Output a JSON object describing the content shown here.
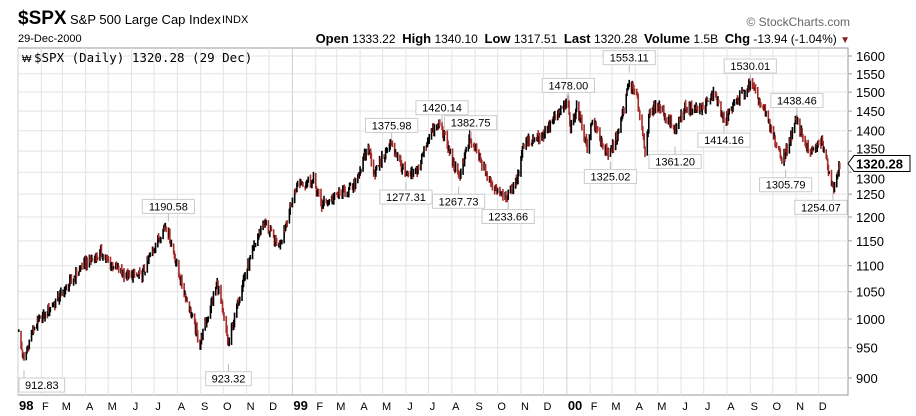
{
  "header": {
    "symbol": "$SPX",
    "name": "S&P 500 Large Cap Index",
    "exchange": "INDX",
    "date": "29-Dec-2000",
    "open_label": "Open",
    "open": "1333.22",
    "high_label": "High",
    "high": "1340.10",
    "low_label": "Low",
    "low": "1317.51",
    "last_label": "Last",
    "last": "1320.28",
    "volume_label": "Volume",
    "volume": "1.5B",
    "chg_label": "Chg",
    "chg": "-13.94 (-1.04%)",
    "chg_direction_icon": "triangle-down-icon",
    "copyright": "© StockCharts.com"
  },
  "chart_data": {
    "type": "line",
    "style": "ohlc-bars",
    "legend": "$SPX (Daily) 1320.28 (29 Dec)",
    "legend_placement": "top-left",
    "y_scale": "log",
    "ylim": [
      880,
      1620
    ],
    "y_ticks": [
      "1600",
      "1550",
      "1500",
      "1450",
      "1400",
      "1350",
      "1300",
      "1250",
      "1200",
      "1150",
      "1100",
      "1050",
      "1000",
      "950",
      "900"
    ],
    "x_range": [
      "1998-01-01",
      "2000-12-31"
    ],
    "x_ticks": [
      {
        "label": "98",
        "date": "1998-01-01",
        "bold": true
      },
      {
        "label": "F",
        "date": "1998-02-01"
      },
      {
        "label": "M",
        "date": "1998-03-01"
      },
      {
        "label": "A",
        "date": "1998-04-01"
      },
      {
        "label": "M",
        "date": "1998-05-01"
      },
      {
        "label": "J",
        "date": "1998-06-01"
      },
      {
        "label": "J",
        "date": "1998-07-01"
      },
      {
        "label": "A",
        "date": "1998-08-01"
      },
      {
        "label": "S",
        "date": "1998-09-01"
      },
      {
        "label": "O",
        "date": "1998-10-01"
      },
      {
        "label": "N",
        "date": "1998-11-01"
      },
      {
        "label": "D",
        "date": "1998-12-01"
      },
      {
        "label": "99",
        "date": "1999-01-01",
        "bold": true
      },
      {
        "label": "F",
        "date": "1999-02-01"
      },
      {
        "label": "M",
        "date": "1999-03-01"
      },
      {
        "label": "A",
        "date": "1999-04-01"
      },
      {
        "label": "M",
        "date": "1999-05-01"
      },
      {
        "label": "J",
        "date": "1999-06-01"
      },
      {
        "label": "J",
        "date": "1999-07-01"
      },
      {
        "label": "A",
        "date": "1999-08-01"
      },
      {
        "label": "S",
        "date": "1999-09-01"
      },
      {
        "label": "O",
        "date": "1999-10-01"
      },
      {
        "label": "N",
        "date": "1999-11-01"
      },
      {
        "label": "D",
        "date": "1999-12-01"
      },
      {
        "label": "00",
        "date": "2000-01-01",
        "bold": true
      },
      {
        "label": "F",
        "date": "2000-02-01"
      },
      {
        "label": "M",
        "date": "2000-03-01"
      },
      {
        "label": "A",
        "date": "2000-04-01"
      },
      {
        "label": "M",
        "date": "2000-05-01"
      },
      {
        "label": "J",
        "date": "2000-06-01"
      },
      {
        "label": "J",
        "date": "2000-07-01"
      },
      {
        "label": "A",
        "date": "2000-08-01"
      },
      {
        "label": "S",
        "date": "2000-09-01"
      },
      {
        "label": "O",
        "date": "2000-10-01"
      },
      {
        "label": "N",
        "date": "2000-11-01"
      },
      {
        "label": "D",
        "date": "2000-12-01"
      }
    ],
    "last_value_tag": "1320.28",
    "up_color": "#000000",
    "down_color": "#a52a2a",
    "grid": true,
    "approx_closes": [
      [
        "1998-01-02",
        975
      ],
      [
        "1998-01-09",
        927
      ],
      [
        "1998-01-20",
        980
      ],
      [
        "1998-02-13",
        1020
      ],
      [
        "1998-03-06",
        1055
      ],
      [
        "1998-03-27",
        1100
      ],
      [
        "1998-04-21",
        1125
      ],
      [
        "1998-05-06",
        1100
      ],
      [
        "1998-05-27",
        1080
      ],
      [
        "1998-06-15",
        1080
      ],
      [
        "1998-06-30",
        1135
      ],
      [
        "1998-07-17",
        1186
      ],
      [
        "1998-08-04",
        1080
      ],
      [
        "1998-08-31",
        957
      ],
      [
        "1998-09-23",
        1066
      ],
      [
        "1998-10-08",
        955
      ],
      [
        "1998-10-27",
        1070
      ],
      [
        "1998-11-23",
        1190
      ],
      [
        "1998-12-14",
        1140
      ],
      [
        "1998-12-31",
        1229
      ],
      [
        "1999-01-08",
        1275
      ],
      [
        "1999-01-29",
        1280
      ],
      [
        "1999-02-09",
        1225
      ],
      [
        "1999-03-04",
        1250
      ],
      [
        "1999-03-23",
        1265
      ],
      [
        "1999-04-12",
        1360
      ],
      [
        "1999-04-20",
        1300
      ],
      [
        "1999-05-13",
        1370
      ],
      [
        "1999-06-01",
        1290
      ],
      [
        "1999-06-14",
        1295
      ],
      [
        "1999-07-02",
        1390
      ],
      [
        "1999-07-16",
        1418
      ],
      [
        "1999-08-10",
        1285
      ],
      [
        "1999-08-25",
        1380
      ],
      [
        "1999-09-23",
        1270
      ],
      [
        "1999-10-15",
        1247
      ],
      [
        "1999-10-26",
        1280
      ],
      [
        "1999-11-05",
        1370
      ],
      [
        "1999-11-30",
        1390
      ],
      [
        "1999-12-31",
        1469
      ],
      [
        "2000-01-03",
        1460
      ],
      [
        "2000-01-06",
        1403
      ],
      [
        "2000-01-14",
        1465
      ],
      [
        "2000-01-28",
        1360
      ],
      [
        "2000-02-04",
        1425
      ],
      [
        "2000-02-25",
        1335
      ],
      [
        "2000-03-10",
        1395
      ],
      [
        "2000-03-24",
        1527
      ],
      [
        "2000-04-04",
        1480
      ],
      [
        "2000-04-14",
        1356
      ],
      [
        "2000-04-20",
        1440
      ],
      [
        "2000-05-01",
        1468
      ],
      [
        "2000-05-24",
        1400
      ],
      [
        "2000-06-06",
        1460
      ],
      [
        "2000-06-30",
        1455
      ],
      [
        "2000-07-16",
        1500
      ],
      [
        "2000-07-28",
        1420
      ],
      [
        "2000-08-15",
        1480
      ],
      [
        "2000-09-01",
        1520
      ],
      [
        "2000-09-20",
        1450
      ],
      [
        "2000-10-12",
        1330
      ],
      [
        "2000-10-18",
        1345
      ],
      [
        "2000-11-01",
        1425
      ],
      [
        "2000-11-20",
        1340
      ],
      [
        "2000-12-05",
        1375
      ],
      [
        "2000-12-20",
        1265
      ],
      [
        "2000-12-29",
        1320.28
      ]
    ],
    "annotations": [
      {
        "label": "912.83",
        "value": 912.83,
        "date": "1998-01-09",
        "type": "low"
      },
      {
        "label": "1190.58",
        "value": 1190.58,
        "date": "1998-07-20",
        "type": "high"
      },
      {
        "label": "923.32",
        "value": 923.32,
        "date": "1998-10-08",
        "type": "low"
      },
      {
        "label": "1375.98",
        "value": 1375.98,
        "date": "1999-05-13",
        "type": "high"
      },
      {
        "label": "1277.31",
        "value": 1277.31,
        "date": "1999-06-01",
        "type": "low"
      },
      {
        "label": "1420.14",
        "value": 1420.14,
        "date": "1999-07-19",
        "type": "high"
      },
      {
        "label": "1267.73",
        "value": 1267.73,
        "date": "1999-08-10",
        "type": "low"
      },
      {
        "label": "1382.75",
        "value": 1382.75,
        "date": "1999-08-26",
        "type": "high"
      },
      {
        "label": "1233.66",
        "value": 1233.66,
        "date": "1999-10-15",
        "type": "low"
      },
      {
        "label": "1478.00",
        "value": 1478.0,
        "date": "2000-01-03",
        "type": "high"
      },
      {
        "label": "1325.02",
        "value": 1325.02,
        "date": "2000-02-28",
        "type": "low"
      },
      {
        "label": "1553.11",
        "value": 1553.11,
        "date": "2000-03-24",
        "type": "high"
      },
      {
        "label": "1361.20",
        "value": 1361.2,
        "date": "2000-05-24",
        "type": "low"
      },
      {
        "label": "1414.16",
        "value": 1414.16,
        "date": "2000-07-28",
        "type": "low"
      },
      {
        "label": "1530.01",
        "value": 1530.01,
        "date": "2000-09-01",
        "type": "high"
      },
      {
        "label": "1305.79",
        "value": 1305.79,
        "date": "2000-10-18",
        "type": "low"
      },
      {
        "label": "1438.46",
        "value": 1438.46,
        "date": "2000-11-02",
        "type": "high"
      },
      {
        "label": "1254.07",
        "value": 1254.07,
        "date": "2000-12-20",
        "type": "low"
      }
    ]
  }
}
